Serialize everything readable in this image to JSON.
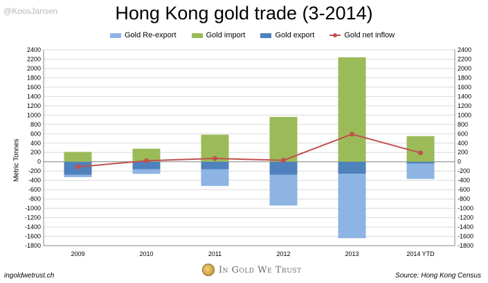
{
  "watermark": "@KoosJansen",
  "footer": {
    "left": "ingoldwetrust.ch",
    "brand": "In Gold We Trust",
    "right": "Source: Hong Kong Census"
  },
  "colors": {
    "reexport": "#8eb4e3",
    "import": "#9bbb59",
    "export": "#4f81bd",
    "net": "#c0504d",
    "grid": "#d9d9d9",
    "axis": "#868686"
  },
  "chart_data": {
    "type": "bar",
    "title": "Hong Kong gold trade (3-2014)",
    "ylabel": "Metric Tonnes",
    "xlabel": "",
    "ylim": [
      -1800,
      2400
    ],
    "ystep": 200,
    "secondary_ylim": [
      -1800,
      2400
    ],
    "grid": true,
    "legend_position": "top",
    "categories": [
      "2009",
      "2010",
      "2011",
      "2012",
      "2013",
      "2014 YTD"
    ],
    "series": [
      {
        "name": "Gold Re-export",
        "kind": "bar",
        "color_key": "reexport",
        "values": [
          -50,
          -100,
          -360,
          -660,
          -1380,
          -330
        ]
      },
      {
        "name": "Gold import",
        "kind": "bar",
        "color_key": "import",
        "values": [
          210,
          280,
          580,
          960,
          2240,
          550
        ]
      },
      {
        "name": "Gold export",
        "kind": "bar",
        "color_key": "export",
        "values": [
          -280,
          -160,
          -160,
          -280,
          -260,
          -40
        ]
      },
      {
        "name": "Gold net inflow",
        "kind": "line",
        "color_key": "net",
        "values": [
          -110,
          20,
          70,
          30,
          590,
          190
        ]
      }
    ]
  }
}
